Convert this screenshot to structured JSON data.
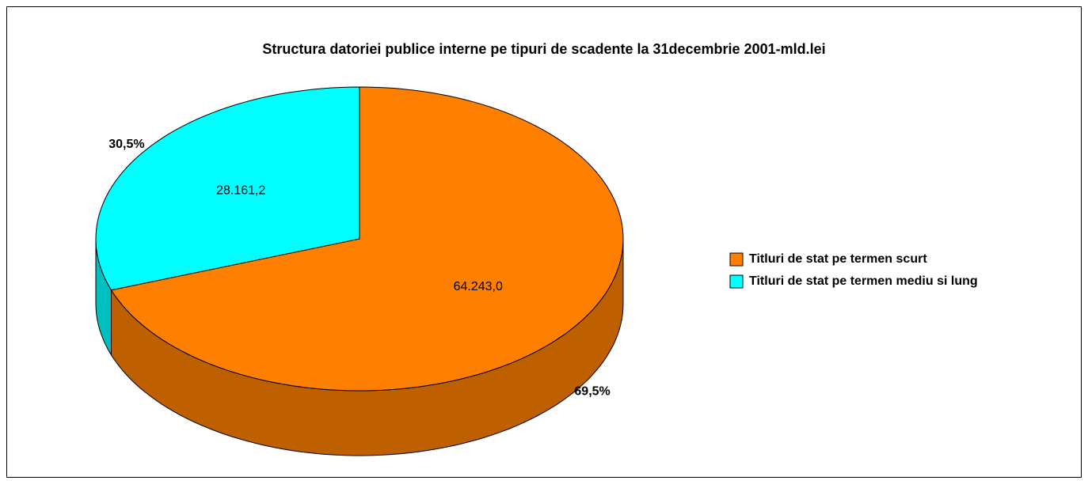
{
  "chart_data": {
    "type": "pie3d",
    "title": "Structura datoriei publice interne pe tipuri de scadente la  31decembrie 2001-mld.lei",
    "categories": [
      "Titluri de stat pe termen scurt",
      "Titluri de stat pe termen mediu si lung"
    ],
    "values": [
      64243.0,
      28161.2
    ],
    "value_labels": [
      "64.243,0",
      "28.161,2"
    ],
    "percent_labels": [
      "69,5%",
      "30,5%"
    ],
    "colors": [
      "#ff8000",
      "#00ffff"
    ],
    "legend": "right"
  }
}
